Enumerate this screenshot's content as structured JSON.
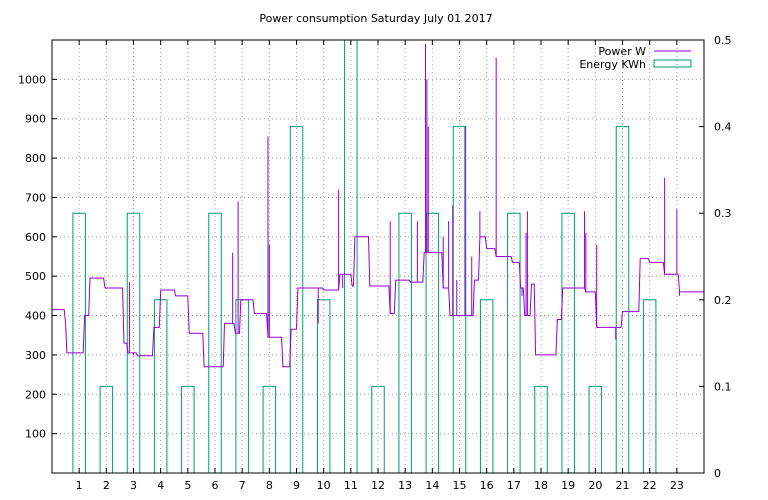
{
  "chart_data": {
    "type": "line",
    "title": "Power consumption Saturday July 01 2017",
    "xlabel": "",
    "ylabel": "",
    "y2label": "",
    "xlim": [
      0,
      24
    ],
    "ylim": [
      0,
      1100
    ],
    "y2lim": [
      0,
      0.5
    ],
    "x_ticks": [
      "1",
      "2",
      "3",
      "4",
      "5",
      "6",
      "7",
      "8",
      "9",
      "10",
      "11",
      "12",
      "13",
      "14",
      "15",
      "16",
      "17",
      "18",
      "19",
      "20",
      "21",
      "22",
      "23"
    ],
    "y_ticks": [
      "100",
      "200",
      "300",
      "400",
      "500",
      "600",
      "700",
      "800",
      "900",
      "1000"
    ],
    "y2_ticks": [
      "0",
      "0.1",
      "0.2",
      "0.3",
      "0.4",
      "0.5"
    ],
    "grid": true,
    "legend_position": "top-right",
    "colors": {
      "power": "#9400d3",
      "energy": "#009e73"
    },
    "series": [
      {
        "name": "Power W",
        "axis": "left",
        "style": "steps",
        "points": [
          [
            0,
            415
          ],
          [
            0.45,
            415
          ],
          [
            0.5,
            380
          ],
          [
            0.55,
            305
          ],
          [
            1.15,
            305
          ],
          [
            1.2,
            400
          ],
          [
            1.35,
            400
          ],
          [
            1.4,
            495
          ],
          [
            1.9,
            495
          ],
          [
            1.95,
            470
          ],
          [
            2.6,
            470
          ],
          [
            2.65,
            330
          ],
          [
            2.75,
            330
          ],
          [
            2.8,
            305
          ],
          [
            3.1,
            305
          ],
          [
            3.15,
            298
          ],
          [
            3.7,
            298
          ],
          [
            3.75,
            370
          ],
          [
            3.95,
            370
          ],
          [
            4.0,
            465
          ],
          [
            4.5,
            465
          ],
          [
            4.55,
            450
          ],
          [
            5.0,
            450
          ],
          [
            5.05,
            355
          ],
          [
            5.55,
            355
          ],
          [
            5.6,
            270
          ],
          [
            6.3,
            270
          ],
          [
            6.35,
            380
          ],
          [
            6.7,
            380
          ],
          [
            6.75,
            355
          ],
          [
            6.9,
            355
          ],
          [
            6.95,
            440
          ],
          [
            7.4,
            440
          ],
          [
            7.45,
            405
          ],
          [
            7.9,
            405
          ],
          [
            7.95,
            345
          ],
          [
            8.45,
            345
          ],
          [
            8.5,
            270
          ],
          [
            8.75,
            270
          ],
          [
            8.8,
            365
          ],
          [
            9.0,
            365
          ],
          [
            9.05,
            470
          ],
          [
            9.95,
            470
          ],
          [
            10.0,
            465
          ],
          [
            10.55,
            465
          ],
          [
            10.6,
            505
          ],
          [
            11.0,
            505
          ],
          [
            11.05,
            475
          ],
          [
            11.1,
            475
          ],
          [
            11.15,
            600
          ],
          [
            11.65,
            600
          ],
          [
            11.7,
            475
          ],
          [
            12.4,
            475
          ],
          [
            12.45,
            405
          ],
          [
            12.6,
            405
          ],
          [
            12.65,
            490
          ],
          [
            13.15,
            490
          ],
          [
            13.2,
            485
          ],
          [
            13.65,
            485
          ],
          [
            13.7,
            560
          ],
          [
            14.35,
            560
          ],
          [
            14.4,
            470
          ],
          [
            14.6,
            470
          ],
          [
            14.65,
            400
          ],
          [
            15.5,
            400
          ],
          [
            15.55,
            490
          ],
          [
            15.7,
            490
          ],
          [
            15.75,
            600
          ],
          [
            15.95,
            600
          ],
          [
            16.0,
            570
          ],
          [
            16.3,
            570
          ],
          [
            16.35,
            550
          ],
          [
            16.9,
            550
          ],
          [
            16.95,
            535
          ],
          [
            17.2,
            535
          ],
          [
            17.25,
            470
          ],
          [
            17.35,
            470
          ],
          [
            17.4,
            400
          ],
          [
            17.6,
            400
          ],
          [
            17.65,
            480
          ],
          [
            17.75,
            480
          ],
          [
            17.8,
            300
          ],
          [
            18.55,
            300
          ],
          [
            18.6,
            390
          ],
          [
            18.75,
            390
          ],
          [
            18.8,
            470
          ],
          [
            19.6,
            470
          ],
          [
            19.65,
            460
          ],
          [
            20.0,
            460
          ],
          [
            20.05,
            370
          ],
          [
            20.95,
            370
          ],
          [
            21.0,
            410
          ],
          [
            21.6,
            410
          ],
          [
            21.65,
            545
          ],
          [
            21.95,
            545
          ],
          [
            22.0,
            535
          ],
          [
            22.5,
            535
          ],
          [
            22.55,
            505
          ],
          [
            23.05,
            505
          ],
          [
            23.1,
            460
          ],
          [
            24,
            460
          ]
        ],
        "spikes": [
          [
            2.85,
            485
          ],
          [
            3.0,
            300
          ],
          [
            6.65,
            560
          ],
          [
            6.85,
            690
          ],
          [
            7.15,
            440
          ],
          [
            7.95,
            855
          ],
          [
            8.0,
            580
          ],
          [
            9.8,
            380
          ],
          [
            10.55,
            720
          ],
          [
            10.7,
            470
          ],
          [
            12.45,
            640
          ],
          [
            13.45,
            640
          ],
          [
            13.75,
            1090
          ],
          [
            13.8,
            1000
          ],
          [
            13.85,
            880
          ],
          [
            14.4,
            600
          ],
          [
            14.6,
            640
          ],
          [
            14.75,
            680
          ],
          [
            14.9,
            490
          ],
          [
            15.2,
            880
          ],
          [
            15.35,
            400
          ],
          [
            15.45,
            550
          ],
          [
            15.75,
            665
          ],
          [
            16.35,
            1055
          ],
          [
            17.3,
            450
          ],
          [
            17.45,
            610
          ],
          [
            17.5,
            665
          ],
          [
            18.6,
            385
          ],
          [
            19.6,
            665
          ],
          [
            19.65,
            610
          ],
          [
            20.05,
            580
          ],
          [
            20.75,
            340
          ],
          [
            22.55,
            750
          ],
          [
            23.0,
            670
          ],
          [
            23.1,
            450
          ]
        ]
      },
      {
        "name": "Energy KWh",
        "axis": "right",
        "style": "boxes",
        "categories": [
          1,
          2,
          3,
          4,
          5,
          6,
          7,
          8,
          9,
          10,
          11,
          12,
          13,
          14,
          15,
          16,
          17,
          18,
          19,
          20,
          21,
          22
        ],
        "values": [
          0.3,
          0.1,
          0.3,
          0.2,
          0.1,
          0.3,
          0.2,
          0.1,
          0.4,
          0.2,
          0.5,
          0.1,
          0.3,
          0.3,
          0.4,
          0.2,
          0.3,
          0.1,
          0.3,
          0.1,
          0.4,
          0.2
        ]
      }
    ]
  }
}
